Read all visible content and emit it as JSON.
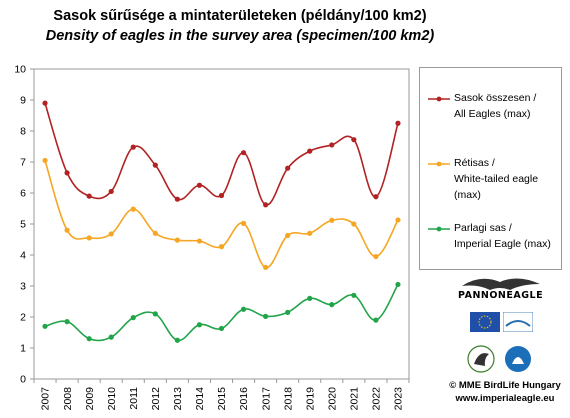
{
  "title_hu": "Sasok sűrűsége a mintaterületeken (példány/100 km2)",
  "title_en": "Density of eagles in the survey area (specimen/100 km2)",
  "chart_data": {
    "type": "line",
    "categories": [
      "2007",
      "2008",
      "2009",
      "2010",
      "2011",
      "2012",
      "2013",
      "2014",
      "2015",
      "2016",
      "2017",
      "2018",
      "2019",
      "2020",
      "2021",
      "2022",
      "2023"
    ],
    "ylim": [
      0,
      10
    ],
    "yticks": [
      "0",
      "1",
      "2",
      "3",
      "4",
      "5",
      "6",
      "7",
      "8",
      "9",
      "10"
    ],
    "grid": false,
    "legend_position": "right",
    "series": [
      {
        "name_line1": "Sasok összesen /",
        "name_line2": "All Eagles (max)",
        "color": "#b22222",
        "values": [
          8.9,
          6.65,
          5.9,
          6.05,
          7.48,
          6.9,
          5.8,
          6.25,
          5.92,
          7.3,
          5.62,
          6.8,
          7.35,
          7.55,
          7.72,
          5.88,
          8.25
        ]
      },
      {
        "name_line1": "Rétisas /",
        "name_line2": "White-tailed eagle (max)",
        "color": "#f5a623",
        "values": [
          7.05,
          4.8,
          4.55,
          4.68,
          5.48,
          4.7,
          4.48,
          4.45,
          4.27,
          5.02,
          3.6,
          4.63,
          4.7,
          5.12,
          5.0,
          3.95,
          5.13
        ]
      },
      {
        "name_line1": "Parlagi sas /",
        "name_line2": "Imperial Eagle (max)",
        "color": "#22a44a",
        "values": [
          1.7,
          1.85,
          1.3,
          1.35,
          1.98,
          2.1,
          1.25,
          1.75,
          1.63,
          2.25,
          2.02,
          2.15,
          2.6,
          2.4,
          2.7,
          1.9,
          3.05
        ]
      }
    ]
  },
  "logos": {
    "pannoneagle": "PANNONEAGLE",
    "footer_org": "© MME BirdLife Hungary",
    "footer_url": "www.imperialeagle.eu"
  }
}
